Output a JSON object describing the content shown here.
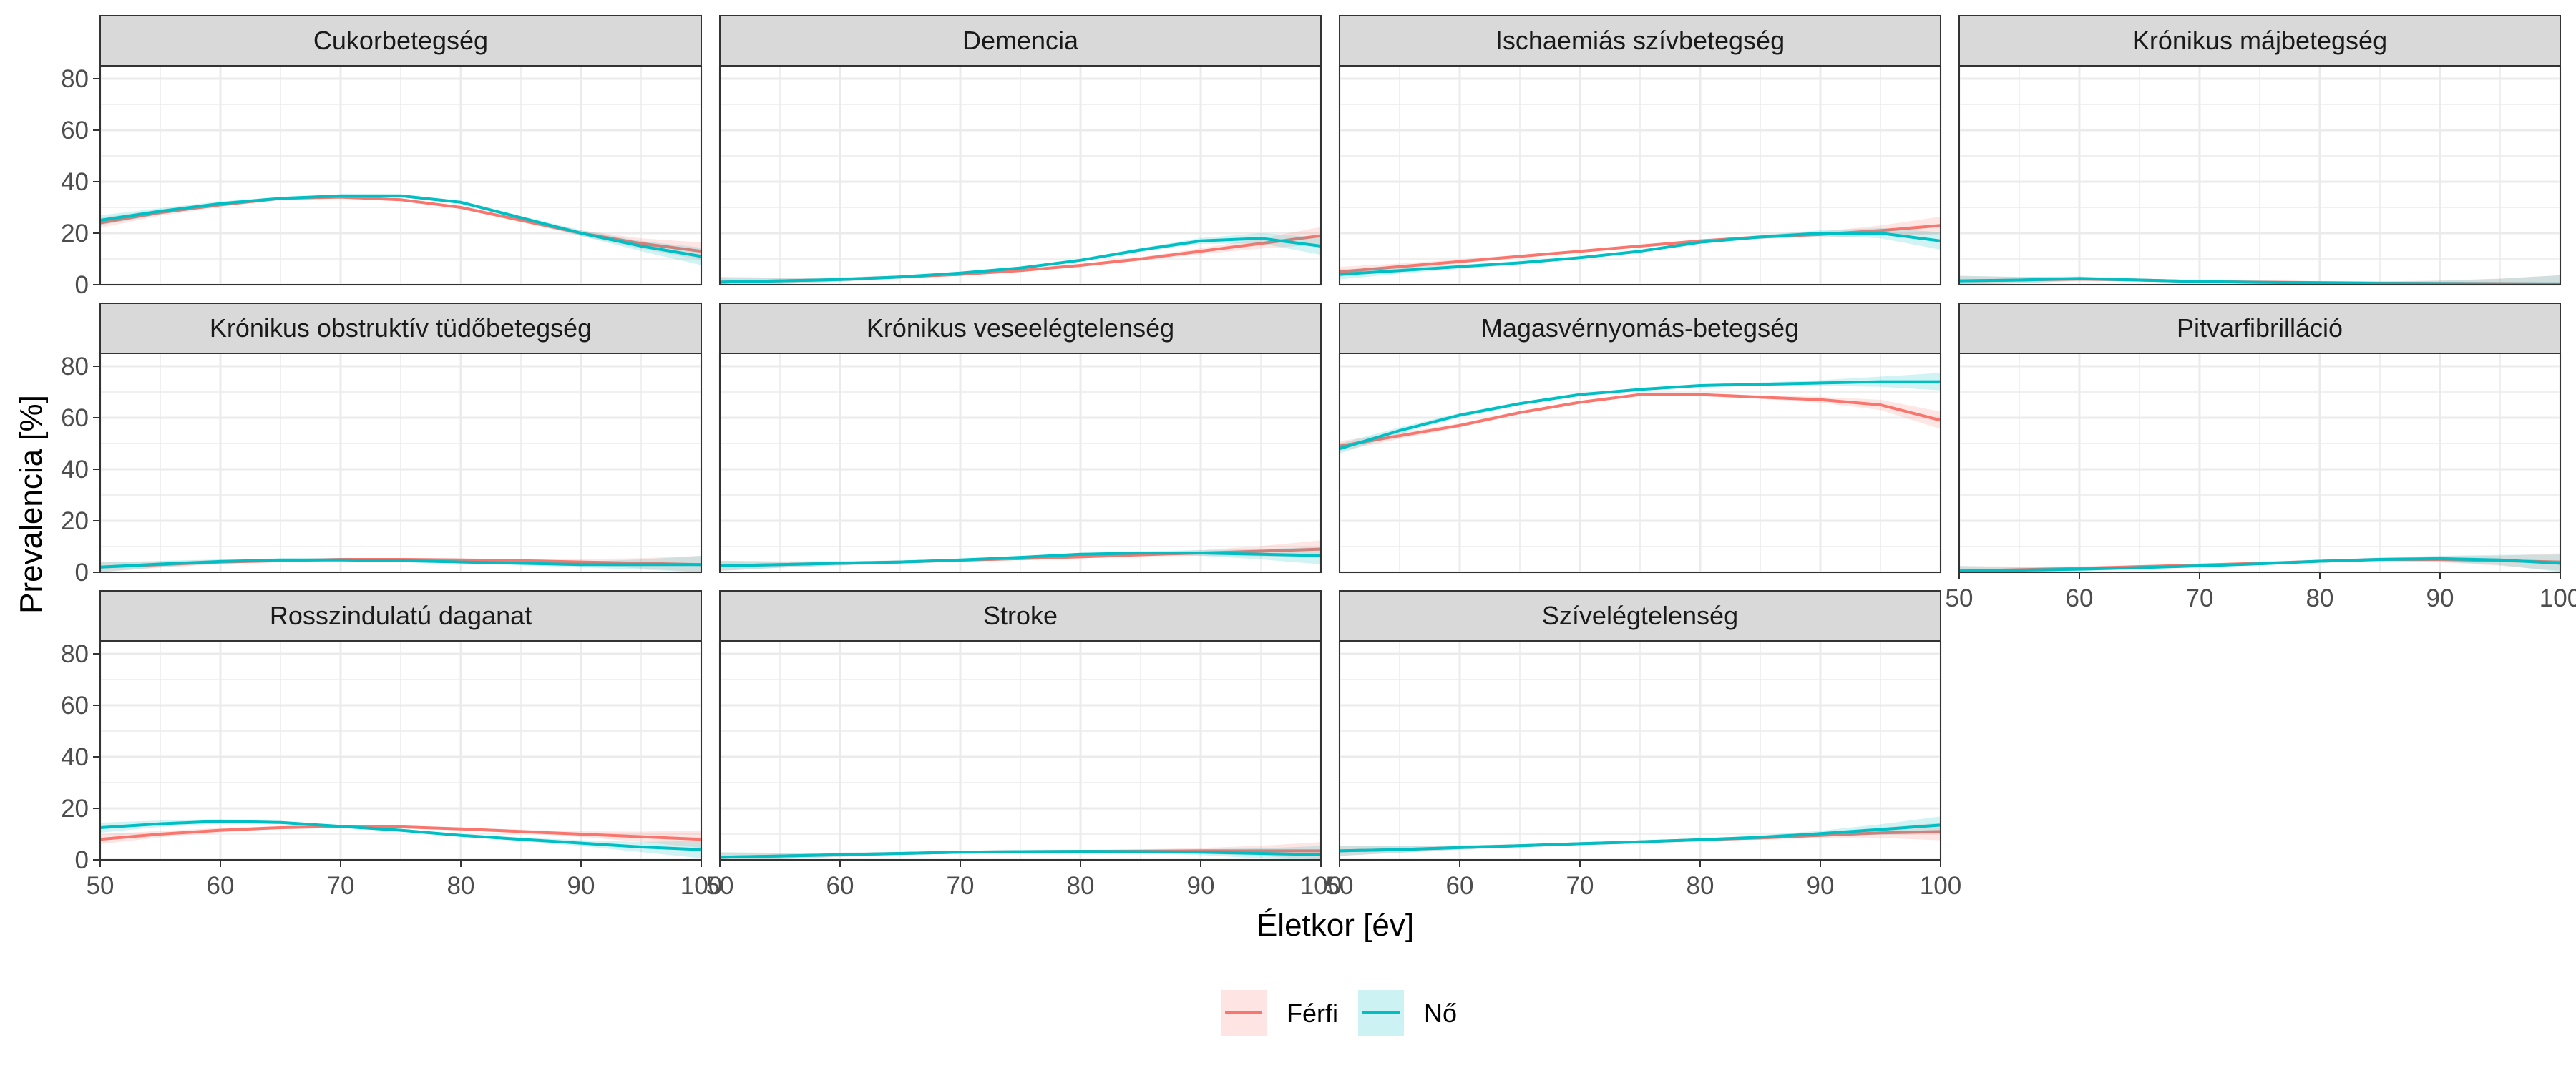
{
  "chart_data": {
    "type": "line",
    "xlabel": "Életkor [év]",
    "ylabel": "Prevalencia [%]",
    "xlim": [
      50,
      100
    ],
    "ylim": [
      0,
      85
    ],
    "x_ticks": [
      50,
      60,
      70,
      80,
      90,
      100
    ],
    "y_ticks": [
      0,
      20,
      40,
      60,
      80
    ],
    "grid": true,
    "legend_position": "bottom",
    "series_names": [
      "Férfi",
      "Nő"
    ],
    "colors": {
      "Férfi": "#F8766D",
      "Nő": "#00BFC4",
      "strip": "#D9D9D9",
      "grid": "#EBEBEB"
    },
    "x": [
      50,
      55,
      60,
      65,
      70,
      75,
      80,
      85,
      90,
      95,
      100
    ],
    "panels": [
      {
        "title": "Cukorbetegség",
        "series": [
          {
            "name": "Férfi",
            "values": [
              24,
              28,
              31,
              33.5,
              34,
              33,
              30,
              25,
              20,
              16,
              13
            ]
          },
          {
            "name": "Nő",
            "values": [
              25,
              28.5,
              31.5,
              33.5,
              34.5,
              34.5,
              32,
              26,
              20,
              15,
              11
            ]
          }
        ]
      },
      {
        "title": "Demencia",
        "series": [
          {
            "name": "Férfi",
            "values": [
              1,
              1.5,
              2,
              3,
              4,
              5.5,
              7.5,
              10,
              13,
              16,
              19
            ]
          },
          {
            "name": "Nő",
            "values": [
              1,
              1.5,
              2,
              3,
              4.5,
              6.5,
              9.5,
              13.5,
              17,
              18,
              15
            ]
          }
        ]
      },
      {
        "title": "Ischaemiás szívbetegség",
        "series": [
          {
            "name": "Férfi",
            "values": [
              5,
              7,
              9,
              11,
              13,
              15,
              17,
              18.5,
              19.5,
              21,
              23
            ]
          },
          {
            "name": "Nő",
            "values": [
              4,
              5.5,
              7,
              8.5,
              10.5,
              13,
              16.5,
              18.5,
              20,
              20,
              17
            ]
          }
        ]
      },
      {
        "title": "Krónikus májbetegség",
        "series": [
          {
            "name": "Férfi",
            "values": [
              1.5,
              1.8,
              2.2,
              1.8,
              1.2,
              1,
              0.8,
              0.6,
              0.5,
              0.4,
              0.3
            ]
          },
          {
            "name": "Nő",
            "values": [
              1.5,
              1.8,
              2.4,
              1.8,
              1.2,
              0.9,
              0.7,
              0.5,
              0.4,
              0.3,
              0.3
            ]
          }
        ]
      },
      {
        "title": "Krónikus obstruktív tüdőbetegség",
        "series": [
          {
            "name": "Férfi",
            "values": [
              2,
              3,
              4,
              4.5,
              5,
              5,
              4.8,
              4.5,
              4,
              3.5,
              3
            ]
          },
          {
            "name": "Nő",
            "values": [
              2,
              3.2,
              4.2,
              4.8,
              4.8,
              4.5,
              4,
              3.5,
              3,
              3,
              3
            ]
          }
        ]
      },
      {
        "title": "Krónikus veseelégtelenség",
        "series": [
          {
            "name": "Férfi",
            "values": [
              2.5,
              3,
              3.5,
              4,
              4.7,
              5.3,
              6,
              6.8,
              7.5,
              8.2,
              9
            ]
          },
          {
            "name": "Nő",
            "values": [
              2.5,
              3,
              3.5,
              4,
              4.8,
              5.8,
              7,
              7.5,
              7.5,
              7,
              6.5
            ]
          }
        ]
      },
      {
        "title": "Magasvérnyomás-betegség",
        "series": [
          {
            "name": "Férfi",
            "values": [
              49,
              53,
              57,
              62,
              66,
              69,
              69,
              68,
              67,
              65,
              59
            ]
          },
          {
            "name": "Nő",
            "values": [
              48,
              55,
              61,
              65.5,
              69,
              71,
              72.5,
              73,
              73.5,
              74,
              74
            ]
          }
        ]
      },
      {
        "title": "Pitvarfibrilláció",
        "series": [
          {
            "name": "Férfi",
            "values": [
              0.5,
              1,
              1.5,
              2.2,
              2.8,
              3.5,
              4.3,
              5,
              5,
              4.5,
              4
            ]
          },
          {
            "name": "Nő",
            "values": [
              0.5,
              0.8,
              1.2,
              1.8,
              2.5,
              3.3,
              4.3,
              5,
              5.3,
              4.8,
              3.5
            ]
          }
        ]
      },
      {
        "title": "Rosszindulatú daganat",
        "series": [
          {
            "name": "Férfi",
            "values": [
              8,
              10,
              11.5,
              12.5,
              13,
              12.8,
              12,
              11,
              10,
              9,
              8
            ]
          },
          {
            "name": "Nő",
            "values": [
              12.5,
              14,
              15,
              14.5,
              13,
              11.5,
              9.5,
              8,
              6.5,
              5,
              4
            ]
          }
        ]
      },
      {
        "title": "Stroke",
        "series": [
          {
            "name": "Férfi",
            "values": [
              1,
              1.5,
              2,
              2.5,
              3,
              3.2,
              3.3,
              3.4,
              3.5,
              3.5,
              3.5
            ]
          },
          {
            "name": "Nő",
            "values": [
              1,
              1.5,
              2,
              2.5,
              3,
              3.2,
              3.3,
              3.2,
              3,
              2.5,
              2
            ]
          }
        ]
      },
      {
        "title": "Szívelégtelenség",
        "series": [
          {
            "name": "Férfi",
            "values": [
              3.5,
              4,
              4.8,
              5.5,
              6.3,
              7,
              7.8,
              8.5,
              9.5,
              10.5,
              11
            ]
          },
          {
            "name": "Nő",
            "values": [
              3.5,
              4,
              4.8,
              5.5,
              6.3,
              7,
              7.8,
              8.8,
              10.2,
              11.8,
              13.5
            ]
          }
        ]
      }
    ]
  }
}
